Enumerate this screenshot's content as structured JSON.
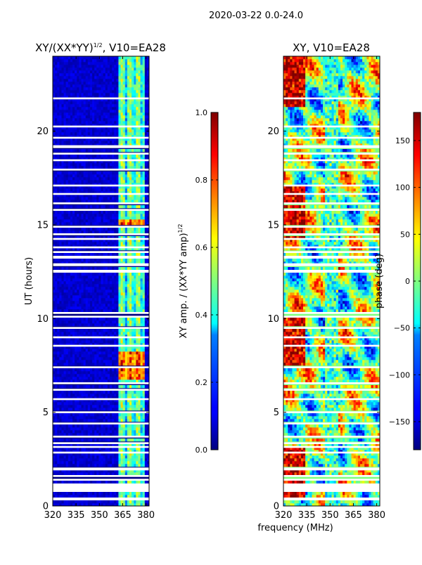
{
  "suptitle": "2020-03-22 0.0-24.0",
  "chart_data": [
    {
      "type": "heatmap",
      "title_main": "XY/(XX*YY)",
      "title_exp": "1/2",
      "title_tail": ", V10=EA28",
      "xlabel": "",
      "ylabel": "UT (hours)",
      "xlim": [
        320,
        382
      ],
      "ylim": [
        0,
        24
      ],
      "xticks": [
        320,
        335,
        350,
        365,
        380
      ],
      "yticks": [
        0,
        5,
        10,
        15,
        20
      ],
      "colorbar": {
        "label_main": "XY amp. / (XX*YY amp)",
        "label_exp": "1/2",
        "range": [
          0.0,
          1.0
        ],
        "ticks": [
          0.0,
          0.2,
          0.4,
          0.6,
          0.8,
          1.0
        ],
        "tick_labels": [
          "0.0",
          "0.2",
          "0.4",
          "0.6",
          "0.8",
          "1.0"
        ],
        "colormap": "jet"
      },
      "bright_band_freq": [
        362,
        379
      ],
      "bright_events_ut": [
        [
          6.8,
          8.2
        ],
        [
          14.9,
          15.3
        ]
      ]
    },
    {
      "type": "heatmap",
      "title": "XY, V10=EA28",
      "xlabel": "frequency (MHz)",
      "ylabel": "",
      "xlim": [
        320,
        382
      ],
      "ylim": [
        0,
        24
      ],
      "xticks": [
        320,
        335,
        350,
        365,
        380
      ],
      "yticks": [
        0,
        5,
        10,
        15,
        20
      ],
      "colorbar": {
        "label": "phase (deg)",
        "range": [
          -180,
          180
        ],
        "ticks": [
          -150,
          -100,
          -50,
          0,
          50,
          100,
          150
        ],
        "tick_labels": [
          "−150",
          "−100",
          "−50",
          "0",
          "50",
          "100",
          "150"
        ],
        "colormap": "jet"
      }
    }
  ],
  "flagged_ut_ranges": [
    [
      0.3,
      0.45
    ],
    [
      0.75,
      1.2
    ],
    [
      1.35,
      1.45
    ],
    [
      1.55,
      1.65
    ],
    [
      1.9,
      2.05
    ],
    [
      2.8,
      2.9
    ],
    [
      3.1,
      3.2
    ],
    [
      3.3,
      3.4
    ],
    [
      3.65,
      3.75
    ],
    [
      4.35,
      4.45
    ],
    [
      4.95,
      5.05
    ],
    [
      5.65,
      5.75
    ],
    [
      6.15,
      6.25
    ],
    [
      6.5,
      6.6
    ],
    [
      7.35,
      7.45
    ],
    [
      8.5,
      8.6
    ],
    [
      8.95,
      9.05
    ],
    [
      9.45,
      9.55
    ],
    [
      10.05,
      10.15
    ],
    [
      10.25,
      10.35
    ],
    [
      12.45,
      12.6
    ],
    [
      12.8,
      12.95
    ],
    [
      13.2,
      13.35
    ],
    [
      13.5,
      13.6
    ],
    [
      13.75,
      13.85
    ],
    [
      14.2,
      14.3
    ],
    [
      14.45,
      14.55
    ],
    [
      14.85,
      14.95
    ],
    [
      15.75,
      15.85
    ],
    [
      16.1,
      16.2
    ],
    [
      16.6,
      16.7
    ],
    [
      17.05,
      17.15
    ],
    [
      17.9,
      18.0
    ],
    [
      18.4,
      18.5
    ],
    [
      18.75,
      18.85
    ],
    [
      19.1,
      19.25
    ],
    [
      19.6,
      19.7
    ],
    [
      20.2,
      20.3
    ],
    [
      21.7,
      21.8
    ]
  ]
}
